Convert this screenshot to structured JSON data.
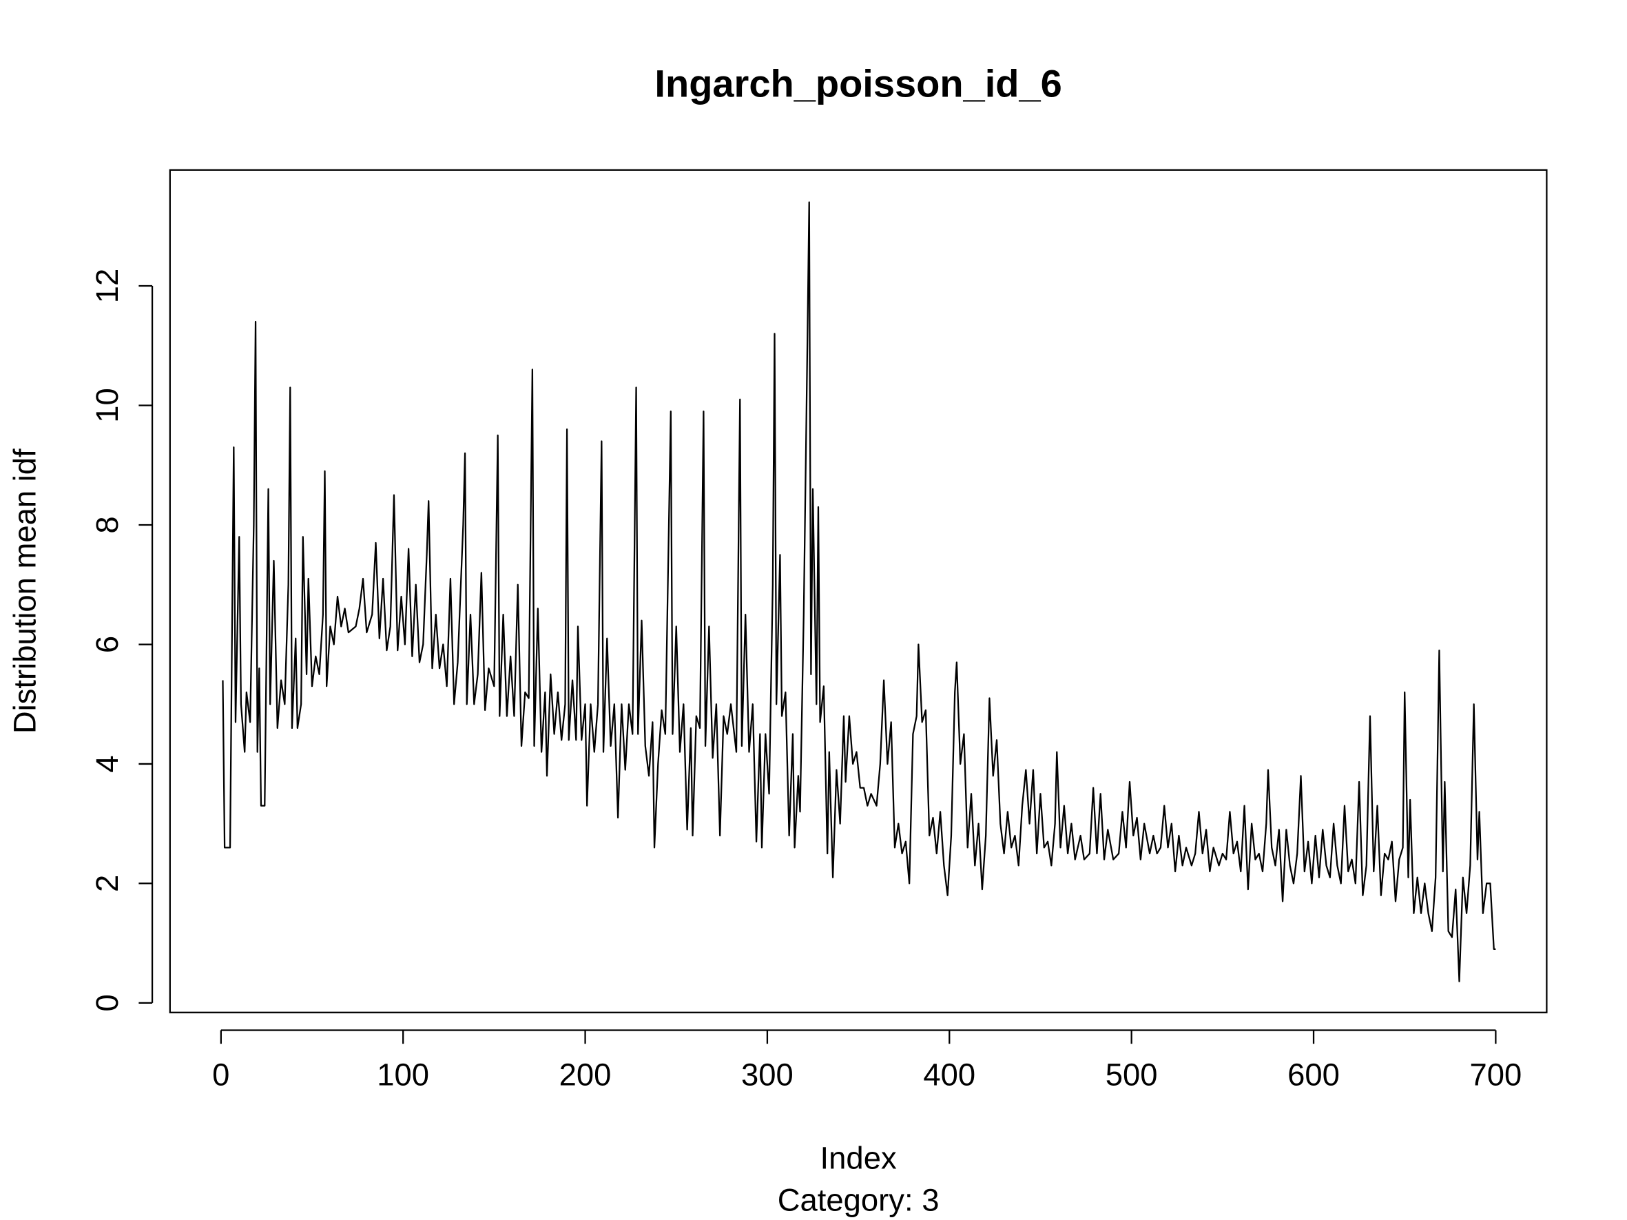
{
  "chart_data": {
    "type": "line",
    "title": "Ingarch_poisson_id_6",
    "subtitle": "Category: 3",
    "x_label": "Index",
    "y_label": "Distribution mean idf",
    "xlim": [
      -28,
      728
    ],
    "ylim": [
      -0.16,
      13.94
    ],
    "xticks": [
      0,
      100,
      200,
      300,
      400,
      500,
      600,
      700
    ],
    "yticks": [
      0,
      2,
      4,
      6,
      8,
      10,
      12
    ],
    "grid": false,
    "series": [
      {
        "color": "#000000",
        "x": [
          1,
          2,
          5,
          6,
          7,
          8,
          10,
          11,
          13,
          14,
          16,
          18,
          19,
          20,
          21,
          22,
          24,
          26,
          27,
          29,
          31,
          33,
          35,
          37,
          38,
          39,
          41,
          42,
          44,
          45,
          47,
          48,
          50,
          52,
          54,
          56,
          57,
          58,
          60,
          62,
          64,
          66,
          68,
          70,
          74,
          76,
          78,
          80,
          83,
          85,
          87,
          89,
          91,
          93,
          95,
          97,
          99,
          101,
          103,
          105,
          107,
          109,
          111,
          113,
          114,
          116,
          118,
          120,
          122,
          124,
          126,
          128,
          130,
          133,
          134,
          135,
          137,
          139,
          141,
          143,
          145,
          147,
          150,
          152,
          153,
          155,
          157,
          159,
          161,
          163,
          165,
          167,
          169,
          171,
          172,
          174,
          176,
          178,
          179,
          181,
          183,
          185,
          187,
          189,
          190,
          191,
          193,
          195,
          196,
          198,
          200,
          201,
          203,
          205,
          207,
          209,
          210,
          212,
          214,
          216,
          218,
          220,
          222,
          224,
          226,
          228,
          229,
          231,
          233,
          235,
          237,
          238,
          240,
          242,
          244,
          247,
          248,
          250,
          252,
          254,
          256,
          258,
          259,
          261,
          263,
          265,
          266,
          268,
          270,
          272,
          274,
          276,
          278,
          280,
          283,
          285,
          286,
          288,
          290,
          292,
          294,
          296,
          297,
          299,
          301,
          303,
          304,
          305,
          307,
          308,
          310,
          312,
          314,
          315,
          317,
          318,
          320,
          322,
          323,
          324,
          325,
          327,
          328,
          329,
          331,
          333,
          334,
          336,
          338,
          340,
          342,
          343,
          345,
          347,
          349,
          351,
          353,
          355,
          357,
          360,
          362,
          364,
          366,
          368,
          370,
          372,
          374,
          376,
          378,
          380,
          382,
          383,
          385,
          387,
          389,
          391,
          393,
          395,
          397,
          399,
          401,
          403,
          404,
          406,
          408,
          410,
          412,
          414,
          416,
          418,
          420,
          422,
          424,
          426,
          428,
          430,
          432,
          434,
          436,
          438,
          440,
          442,
          444,
          446,
          448,
          450,
          452,
          454,
          456,
          458,
          459,
          461,
          463,
          465,
          467,
          469,
          472,
          474,
          477,
          479,
          481,
          483,
          485,
          487,
          490,
          493,
          495,
          497,
          499,
          501,
          503,
          505,
          507,
          510,
          512,
          514,
          516,
          518,
          520,
          522,
          524,
          526,
          528,
          530,
          533,
          535,
          537,
          539,
          541,
          543,
          545,
          548,
          550,
          552,
          554,
          556,
          558,
          560,
          562,
          564,
          566,
          568,
          570,
          572,
          574,
          575,
          577,
          579,
          581,
          583,
          585,
          587,
          589,
          591,
          593,
          595,
          597,
          599,
          601,
          603,
          605,
          607,
          609,
          611,
          613,
          615,
          617,
          619,
          621,
          623,
          625,
          627,
          629,
          631,
          633,
          635,
          637,
          639,
          641,
          643,
          645,
          647,
          649,
          650,
          652,
          653,
          655,
          657,
          659,
          661,
          663,
          665,
          667,
          669,
          671,
          672,
          674,
          676,
          678,
          680,
          682,
          684,
          686,
          688,
          690,
          691,
          693,
          695,
          697,
          699,
          700
        ],
        "values": [
          5.4,
          2.6,
          2.6,
          6.0,
          9.3,
          4.7,
          7.8,
          5.0,
          4.2,
          5.2,
          4.7,
          8.0,
          11.4,
          4.2,
          5.6,
          3.3,
          3.3,
          8.6,
          5.0,
          7.4,
          4.6,
          5.4,
          5.0,
          7.0,
          10.3,
          4.6,
          6.1,
          4.6,
          5.0,
          7.8,
          5.5,
          7.1,
          5.3,
          5.8,
          5.5,
          6.5,
          8.9,
          5.3,
          6.3,
          6.0,
          6.8,
          6.3,
          6.6,
          6.2,
          6.3,
          6.6,
          7.1,
          6.2,
          6.5,
          7.7,
          6.1,
          7.1,
          5.9,
          6.3,
          8.5,
          5.9,
          6.8,
          6.0,
          7.6,
          5.8,
          7.0,
          5.7,
          6.0,
          7.5,
          8.4,
          5.6,
          6.5,
          5.6,
          6.0,
          5.3,
          7.1,
          5.0,
          5.7,
          8.0,
          9.2,
          5.0,
          6.5,
          5.0,
          5.5,
          7.2,
          4.9,
          5.6,
          5.3,
          9.5,
          4.8,
          6.5,
          4.8,
          5.8,
          4.8,
          7.0,
          4.3,
          5.2,
          5.1,
          10.6,
          4.3,
          6.6,
          4.2,
          5.2,
          3.8,
          5.5,
          4.5,
          5.2,
          4.4,
          5.0,
          9.6,
          4.4,
          5.4,
          4.4,
          6.3,
          4.4,
          5.0,
          3.3,
          5.0,
          4.2,
          5.0,
          9.4,
          4.2,
          6.1,
          4.3,
          5.0,
          3.1,
          5.0,
          3.9,
          5.0,
          4.5,
          10.3,
          4.5,
          6.4,
          4.3,
          3.8,
          4.7,
          2.6,
          4.0,
          4.9,
          4.5,
          9.9,
          4.5,
          6.3,
          4.2,
          5.0,
          2.9,
          4.6,
          2.8,
          4.8,
          4.6,
          9.9,
          4.3,
          6.3,
          4.1,
          5.0,
          2.8,
          4.8,
          4.5,
          5.0,
          4.2,
          10.1,
          4.3,
          6.5,
          4.2,
          5.0,
          2.7,
          4.5,
          2.6,
          4.5,
          3.5,
          7.0,
          11.2,
          5.0,
          7.5,
          4.8,
          5.2,
          2.8,
          4.5,
          2.6,
          3.8,
          3.2,
          6.5,
          11.0,
          13.4,
          5.5,
          8.6,
          5.0,
          8.3,
          4.7,
          5.3,
          2.5,
          4.2,
          2.1,
          3.9,
          3.0,
          4.8,
          3.7,
          4.8,
          4.0,
          4.2,
          3.6,
          3.6,
          3.3,
          3.5,
          3.3,
          4.0,
          5.4,
          4.0,
          4.7,
          2.6,
          3.0,
          2.5,
          2.7,
          2.0,
          4.5,
          4.8,
          6.0,
          4.7,
          4.9,
          2.8,
          3.1,
          2.5,
          3.2,
          2.3,
          1.8,
          2.8,
          5.2,
          5.7,
          4.0,
          4.5,
          2.6,
          3.5,
          2.3,
          3.0,
          1.9,
          2.8,
          5.1,
          3.8,
          4.4,
          3.0,
          2.5,
          3.2,
          2.6,
          2.8,
          2.3,
          3.3,
          3.9,
          3.0,
          3.9,
          2.5,
          3.5,
          2.6,
          2.7,
          2.3,
          3.0,
          4.2,
          2.6,
          3.3,
          2.5,
          3.0,
          2.4,
          2.8,
          2.4,
          2.5,
          3.6,
          2.5,
          3.5,
          2.4,
          2.9,
          2.4,
          2.5,
          3.2,
          2.6,
          3.7,
          2.8,
          3.1,
          2.4,
          3.0,
          2.5,
          2.8,
          2.5,
          2.6,
          3.3,
          2.6,
          3.0,
          2.2,
          2.8,
          2.3,
          2.6,
          2.3,
          2.5,
          3.2,
          2.5,
          2.9,
          2.2,
          2.6,
          2.3,
          2.5,
          2.4,
          3.2,
          2.5,
          2.7,
          2.2,
          3.3,
          1.9,
          3.0,
          2.4,
          2.5,
          2.2,
          3.0,
          3.9,
          2.6,
          2.3,
          2.9,
          1.7,
          2.9,
          2.3,
          2.0,
          2.5,
          3.8,
          2.2,
          2.7,
          2.0,
          2.8,
          2.1,
          2.9,
          2.3,
          2.1,
          3.0,
          2.3,
          2.0,
          3.3,
          2.2,
          2.4,
          2.0,
          3.7,
          1.8,
          2.3,
          4.8,
          2.2,
          3.3,
          1.8,
          2.5,
          2.4,
          2.7,
          1.7,
          2.4,
          2.6,
          5.2,
          2.1,
          3.4,
          1.5,
          2.1,
          1.5,
          2.0,
          1.5,
          1.2,
          2.1,
          5.9,
          2.2,
          3.7,
          1.2,
          1.1,
          1.9,
          0.36,
          2.1,
          1.5,
          2.3,
          5.0,
          2.4,
          3.2,
          1.5,
          2.0,
          2.0,
          0.9,
          0.9
        ]
      }
    ]
  }
}
